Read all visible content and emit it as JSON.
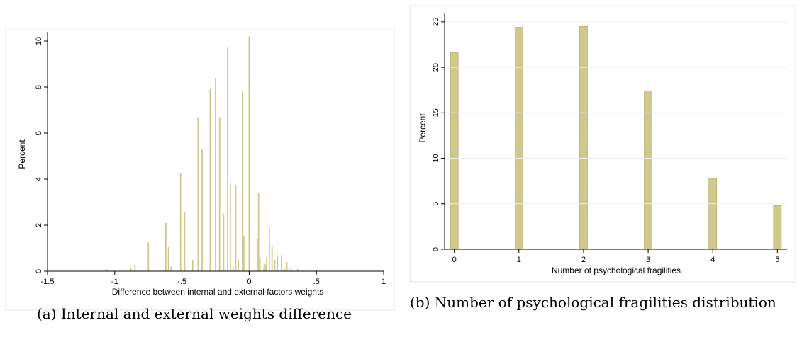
{
  "colors": {
    "bar_fill": "#cfc98e",
    "bar_stroke": "#b8b070",
    "frame": "#e4e4e4"
  },
  "charts": {
    "a": {
      "caption": "(a) Internal and external weights difference"
    },
    "b": {
      "caption": "(b) Number of psychological fragilities distribution"
    }
  },
  "chart_data": [
    {
      "type": "bar",
      "title": "",
      "xlabel": "Difference between internal and external factors weights",
      "ylabel": "Percent",
      "xlim": [
        -1.5,
        1
      ],
      "ylim": [
        0,
        10.4
      ],
      "xticks": [
        "-1.5",
        "-1",
        "-.5",
        "0",
        ".5",
        "1"
      ],
      "yticks": [
        "0",
        "2",
        "4",
        "6",
        "8",
        "10"
      ],
      "bars": [
        {
          "x": -1.06,
          "y": 0.1
        },
        {
          "x": -0.88,
          "y": 0.12
        },
        {
          "x": -0.85,
          "y": 0.3
        },
        {
          "x": -0.75,
          "y": 1.25
        },
        {
          "x": -0.62,
          "y": 2.1
        },
        {
          "x": -0.6,
          "y": 1.05
        },
        {
          "x": -0.58,
          "y": 0.2
        },
        {
          "x": -0.51,
          "y": 4.25
        },
        {
          "x": -0.48,
          "y": 2.55
        },
        {
          "x": -0.42,
          "y": 0.5
        },
        {
          "x": -0.38,
          "y": 6.7
        },
        {
          "x": -0.35,
          "y": 5.3
        },
        {
          "x": -0.29,
          "y": 7.95
        },
        {
          "x": -0.25,
          "y": 8.4
        },
        {
          "x": -0.22,
          "y": 6.7
        },
        {
          "x": -0.19,
          "y": 2.5
        },
        {
          "x": -0.16,
          "y": 9.75
        },
        {
          "x": -0.14,
          "y": 3.85
        },
        {
          "x": -0.12,
          "y": 0.2
        },
        {
          "x": -0.1,
          "y": 3.75
        },
        {
          "x": -0.08,
          "y": 0.5
        },
        {
          "x": -0.05,
          "y": 7.8
        },
        {
          "x": -0.04,
          "y": 1.55
        },
        {
          "x": 0.0,
          "y": 10.2
        },
        {
          "x": 0.06,
          "y": 1.4
        },
        {
          "x": 0.07,
          "y": 3.4
        },
        {
          "x": 0.08,
          "y": 0.6
        },
        {
          "x": 0.11,
          "y": 0.2
        },
        {
          "x": 0.12,
          "y": 0.3
        },
        {
          "x": 0.13,
          "y": 0.6
        },
        {
          "x": 0.15,
          "y": 1.9
        },
        {
          "x": 0.17,
          "y": 1.1
        },
        {
          "x": 0.19,
          "y": 0.5
        },
        {
          "x": 0.21,
          "y": 0.7
        },
        {
          "x": 0.24,
          "y": 0.7
        },
        {
          "x": 0.26,
          "y": 0.15
        },
        {
          "x": 0.28,
          "y": 0.4
        },
        {
          "x": 0.31,
          "y": 0.12
        },
        {
          "x": 0.36,
          "y": 0.1
        },
        {
          "x": 0.5,
          "y": 0.05
        }
      ]
    },
    {
      "type": "bar",
      "title": "",
      "xlabel": "Number of psychological fragilities",
      "ylabel": "Percent",
      "xlim": [
        -0.15,
        5.15
      ],
      "ylim": [
        0,
        26
      ],
      "xticks": [
        "0",
        "1",
        "2",
        "3",
        "4",
        "5"
      ],
      "yticks": [
        "0",
        "5",
        "10",
        "15",
        "20",
        "25"
      ],
      "categories": [
        "0",
        "1",
        "2",
        "3",
        "4",
        "5"
      ],
      "values": [
        21.6,
        24.4,
        24.5,
        17.4,
        7.8,
        4.8
      ]
    }
  ]
}
